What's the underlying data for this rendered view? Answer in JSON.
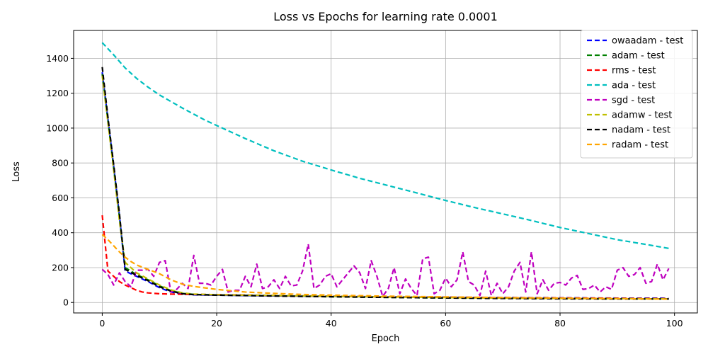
{
  "chart_data": {
    "type": "line",
    "title": "Loss vs Epochs for learning rate 0.0001",
    "xlabel": "Epoch",
    "ylabel": "Loss",
    "xlim": [
      -5,
      104
    ],
    "ylim": [
      -60,
      1560
    ],
    "xticks": [
      0,
      20,
      40,
      60,
      80,
      100
    ],
    "yticks": [
      0,
      200,
      400,
      600,
      800,
      1000,
      1200,
      1400
    ],
    "grid": true,
    "legend_position": "top-right",
    "x": [
      0,
      1,
      2,
      3,
      4,
      5,
      6,
      7,
      8,
      9,
      10,
      11,
      12,
      13,
      14,
      15,
      16,
      17,
      18,
      19,
      20,
      21,
      22,
      23,
      24,
      25,
      26,
      27,
      28,
      29,
      30,
      31,
      32,
      33,
      34,
      35,
      36,
      37,
      38,
      39,
      40,
      41,
      42,
      43,
      44,
      45,
      46,
      47,
      48,
      49,
      50,
      51,
      52,
      53,
      54,
      55,
      56,
      57,
      58,
      59,
      60,
      61,
      62,
      63,
      64,
      65,
      66,
      67,
      68,
      69,
      70,
      71,
      72,
      73,
      74,
      75,
      76,
      77,
      78,
      79,
      80,
      81,
      82,
      83,
      84,
      85,
      86,
      87,
      88,
      89,
      90,
      91,
      92,
      93,
      94,
      95,
      96,
      97,
      98,
      99
    ],
    "series": [
      {
        "name": "owaadam - test",
        "color": "#0000ff",
        "anchors": [
          [
            0,
            1320
          ],
          [
            1,
            1050
          ],
          [
            2,
            780
          ],
          [
            3,
            500
          ],
          [
            4,
            180
          ],
          [
            6,
            150
          ],
          [
            8,
            120
          ],
          [
            10,
            85
          ],
          [
            12,
            60
          ],
          [
            14,
            48
          ],
          [
            16,
            44
          ],
          [
            20,
            42
          ],
          [
            30,
            38
          ],
          [
            40,
            35
          ],
          [
            50,
            32
          ],
          [
            60,
            30
          ],
          [
            70,
            28
          ],
          [
            80,
            27
          ],
          [
            90,
            25
          ],
          [
            98,
            25
          ],
          [
            99,
            22
          ]
        ]
      },
      {
        "name": "adam - test",
        "color": "#008000",
        "anchors": [
          [
            0,
            1310
          ],
          [
            1,
            1040
          ],
          [
            2,
            770
          ],
          [
            3,
            490
          ],
          [
            4,
            200
          ],
          [
            6,
            160
          ],
          [
            8,
            130
          ],
          [
            10,
            95
          ],
          [
            12,
            68
          ],
          [
            14,
            52
          ],
          [
            16,
            46
          ],
          [
            20,
            43
          ],
          [
            30,
            38
          ],
          [
            40,
            33
          ],
          [
            50,
            29
          ],
          [
            60,
            26
          ],
          [
            70,
            24
          ],
          [
            80,
            22
          ],
          [
            90,
            21
          ],
          [
            99,
            20
          ]
        ]
      },
      {
        "name": "rms - test",
        "color": "#ff0000",
        "anchors": [
          [
            0,
            500
          ],
          [
            1,
            180
          ],
          [
            2,
            150
          ],
          [
            3,
            120
          ],
          [
            4,
            100
          ],
          [
            5,
            85
          ],
          [
            6,
            70
          ],
          [
            7,
            60
          ],
          [
            8,
            55
          ],
          [
            10,
            50
          ],
          [
            12,
            48
          ],
          [
            14,
            47
          ],
          [
            20,
            45
          ],
          [
            30,
            40
          ],
          [
            40,
            36
          ],
          [
            50,
            32
          ],
          [
            60,
            30
          ],
          [
            70,
            28
          ],
          [
            80,
            26
          ],
          [
            90,
            24
          ],
          [
            99,
            22
          ]
        ]
      },
      {
        "name": "ada - test",
        "color": "#00bfbf",
        "anchors": [
          [
            0,
            1490
          ],
          [
            2,
            1420
          ],
          [
            4,
            1345
          ],
          [
            6,
            1285
          ],
          [
            8,
            1235
          ],
          [
            10,
            1190
          ],
          [
            14,
            1115
          ],
          [
            18,
            1045
          ],
          [
            20,
            1015
          ],
          [
            25,
            940
          ],
          [
            30,
            870
          ],
          [
            35,
            810
          ],
          [
            40,
            760
          ],
          [
            45,
            712
          ],
          [
            50,
            670
          ],
          [
            55,
            628
          ],
          [
            60,
            585
          ],
          [
            65,
            545
          ],
          [
            70,
            508
          ],
          [
            75,
            470
          ],
          [
            80,
            430
          ],
          [
            85,
            395
          ],
          [
            90,
            360
          ],
          [
            95,
            333
          ],
          [
            99,
            310
          ]
        ]
      },
      {
        "name": "sgd - test",
        "color": "#bf00bf",
        "anchors": [
          [
            0,
            190
          ],
          [
            1,
            160
          ],
          [
            2,
            100
          ],
          [
            3,
            170
          ],
          [
            4,
            120
          ],
          [
            5,
            90
          ],
          [
            6,
            185
          ],
          [
            7,
            185
          ],
          [
            8,
            190
          ],
          [
            9,
            150
          ],
          [
            10,
            230
          ],
          [
            11,
            240
          ],
          [
            12,
            60
          ],
          [
            13,
            75
          ],
          [
            14,
            110
          ],
          [
            15,
            80
          ],
          [
            16,
            270
          ],
          [
            17,
            110
          ],
          [
            18,
            110
          ],
          [
            19,
            100
          ],
          [
            20,
            150
          ],
          [
            21,
            190
          ],
          [
            22,
            60
          ],
          [
            23,
            70
          ],
          [
            24,
            70
          ],
          [
            25,
            150
          ],
          [
            26,
            90
          ],
          [
            27,
            220
          ],
          [
            28,
            80
          ],
          [
            29,
            90
          ],
          [
            30,
            130
          ],
          [
            31,
            80
          ],
          [
            32,
            150
          ],
          [
            33,
            95
          ],
          [
            34,
            100
          ],
          [
            35,
            180
          ],
          [
            36,
            335
          ],
          [
            37,
            80
          ],
          [
            38,
            100
          ],
          [
            39,
            150
          ],
          [
            40,
            165
          ],
          [
            41,
            90
          ],
          [
            42,
            130
          ],
          [
            43,
            170
          ],
          [
            44,
            210
          ],
          [
            45,
            170
          ],
          [
            46,
            80
          ],
          [
            47,
            240
          ],
          [
            48,
            150
          ],
          [
            49,
            35
          ],
          [
            50,
            80
          ],
          [
            51,
            200
          ],
          [
            52,
            50
          ],
          [
            53,
            135
          ],
          [
            54,
            80
          ],
          [
            55,
            40
          ],
          [
            56,
            250
          ],
          [
            57,
            260
          ],
          [
            58,
            50
          ],
          [
            59,
            70
          ],
          [
            60,
            140
          ],
          [
            61,
            90
          ],
          [
            62,
            130
          ],
          [
            63,
            290
          ],
          [
            64,
            120
          ],
          [
            65,
            100
          ],
          [
            66,
            40
          ],
          [
            67,
            180
          ],
          [
            68,
            40
          ],
          [
            69,
            110
          ],
          [
            70,
            50
          ],
          [
            71,
            90
          ],
          [
            72,
            180
          ],
          [
            73,
            230
          ],
          [
            74,
            60
          ],
          [
            75,
            290
          ],
          [
            76,
            50
          ],
          [
            77,
            130
          ],
          [
            78,
            70
          ],
          [
            79,
            110
          ],
          [
            80,
            115
          ],
          [
            81,
            100
          ],
          [
            82,
            140
          ],
          [
            83,
            155
          ],
          [
            84,
            75
          ],
          [
            85,
            80
          ],
          [
            86,
            100
          ],
          [
            87,
            60
          ],
          [
            88,
            90
          ],
          [
            89,
            75
          ],
          [
            90,
            185
          ],
          [
            91,
            200
          ],
          [
            92,
            150
          ],
          [
            93,
            160
          ],
          [
            94,
            200
          ],
          [
            95,
            110
          ],
          [
            96,
            120
          ],
          [
            97,
            220
          ],
          [
            98,
            130
          ],
          [
            99,
            195
          ]
        ]
      },
      {
        "name": "adamw - test",
        "color": "#bfbf00",
        "anchors": [
          [
            0,
            1300
          ],
          [
            1,
            1030
          ],
          [
            2,
            760
          ],
          [
            3,
            470
          ],
          [
            4,
            230
          ],
          [
            6,
            170
          ],
          [
            8,
            135
          ],
          [
            10,
            100
          ],
          [
            12,
            72
          ],
          [
            14,
            55
          ],
          [
            16,
            48
          ],
          [
            20,
            44
          ],
          [
            30,
            40
          ],
          [
            40,
            36
          ],
          [
            50,
            32
          ],
          [
            60,
            28
          ],
          [
            70,
            25
          ],
          [
            80,
            23
          ],
          [
            90,
            22
          ],
          [
            99,
            21
          ]
        ]
      },
      {
        "name": "nadam - test",
        "color": "#000000",
        "anchors": [
          [
            0,
            1350
          ],
          [
            1,
            1060
          ],
          [
            2,
            790
          ],
          [
            3,
            510
          ],
          [
            4,
            190
          ],
          [
            6,
            155
          ],
          [
            8,
            125
          ],
          [
            10,
            90
          ],
          [
            12,
            65
          ],
          [
            14,
            50
          ],
          [
            16,
            45
          ],
          [
            20,
            42
          ],
          [
            30,
            37
          ],
          [
            40,
            33
          ],
          [
            50,
            29
          ],
          [
            60,
            26
          ],
          [
            70,
            23
          ],
          [
            80,
            21
          ],
          [
            90,
            20
          ],
          [
            99,
            20
          ]
        ]
      },
      {
        "name": "radam - test",
        "color": "#ffa500",
        "anchors": [
          [
            0,
            390
          ],
          [
            1,
            360
          ],
          [
            2,
            325
          ],
          [
            3,
            290
          ],
          [
            4,
            260
          ],
          [
            5,
            235
          ],
          [
            6,
            215
          ],
          [
            8,
            190
          ],
          [
            10,
            165
          ],
          [
            12,
            130
          ],
          [
            14,
            105
          ],
          [
            16,
            92
          ],
          [
            20,
            75
          ],
          [
            25,
            60
          ],
          [
            30,
            52
          ],
          [
            35,
            46
          ],
          [
            40,
            42
          ],
          [
            50,
            36
          ],
          [
            60,
            32
          ],
          [
            70,
            28
          ],
          [
            80,
            25
          ],
          [
            90,
            22
          ],
          [
            99,
            19
          ]
        ]
      }
    ]
  }
}
